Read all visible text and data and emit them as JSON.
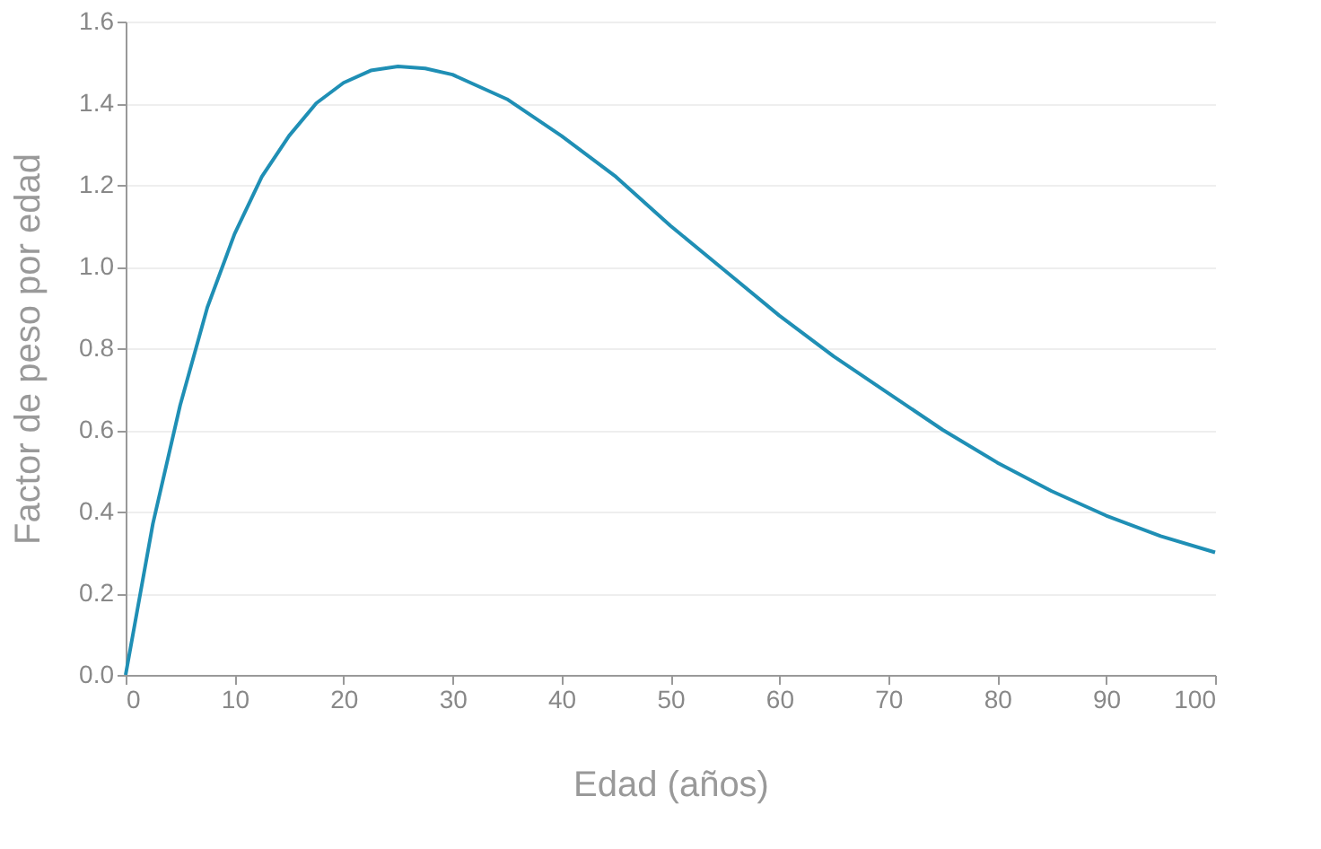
{
  "chart_data": {
    "type": "line",
    "xlabel": "Edad (años)",
    "ylabel": "Factor de peso por edad",
    "x": [
      0,
      2.5,
      5,
      7.5,
      10,
      12.5,
      15,
      17.5,
      20,
      22.5,
      25,
      27.5,
      30,
      35,
      40,
      45,
      50,
      55,
      60,
      65,
      70,
      75,
      80,
      85,
      90,
      95,
      100
    ],
    "series": [
      {
        "color": "#1f8fb5",
        "values": [
          0,
          0.37,
          0.66,
          0.9,
          1.08,
          1.22,
          1.32,
          1.4,
          1.45,
          1.48,
          1.49,
          1.485,
          1.47,
          1.41,
          1.32,
          1.22,
          1.1,
          0.99,
          0.88,
          0.78,
          0.69,
          0.6,
          0.52,
          0.45,
          0.39,
          0.34,
          0.3
        ]
      }
    ],
    "xlim": [
      0,
      100
    ],
    "xticks": [
      0,
      10,
      20,
      30,
      40,
      50,
      60,
      70,
      80,
      90,
      100
    ],
    "ylim": [
      0,
      1.6
    ],
    "yticks": [
      {
        "value": 0,
        "label": "0.0"
      },
      0.2,
      0.4,
      0.6,
      0.8,
      {
        "value": 1,
        "label": "1.0"
      },
      1.2,
      1.4,
      1.6
    ],
    "grid": "y",
    "marker": "none",
    "line_style": "solid"
  }
}
